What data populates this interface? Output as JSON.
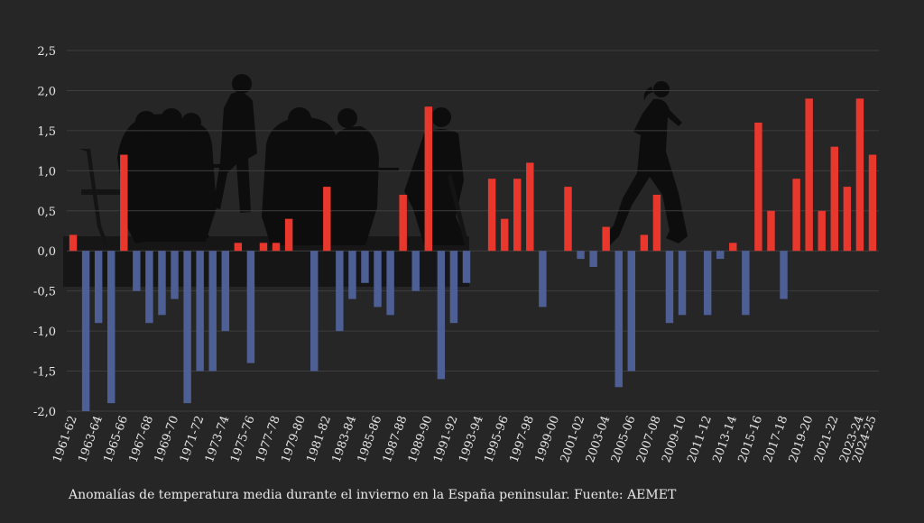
{
  "caption": "Anomalías de temperatura media durante el invierno en la España peninsular. Fuente: AEMET",
  "colors": {
    "background": "#262626",
    "positive": "#e8372c",
    "negative": "#4e5f95",
    "grid": "#3e3e3e",
    "silhouette": "#0d0d0d"
  },
  "chart_data": {
    "type": "bar",
    "title": "",
    "xlabel": "",
    "ylabel": "",
    "ylim": [
      -2.0,
      2.5
    ],
    "yticks": [
      -2.0,
      -1.5,
      -1.0,
      -0.5,
      0.0,
      0.5,
      1.0,
      1.5,
      2.0,
      2.5
    ],
    "ytick_labels": [
      "-2,0",
      "-1,5",
      "-1,0",
      "-0,5",
      "0,0",
      "0,5",
      "1,0",
      "1,5",
      "2,0",
      "2,5"
    ],
    "grid": true,
    "background_image": "silhouettes of people sitting at cafe tables and a woman jogging",
    "categories": [
      "1961-62",
      "1962-63",
      "1963-64",
      "1964-65",
      "1965-66",
      "1966-67",
      "1967-68",
      "1968-69",
      "1969-70",
      "1970-71",
      "1971-72",
      "1972-73",
      "1973-74",
      "1974-75",
      "1975-76",
      "1976-77",
      "1977-78",
      "1978-79",
      "1979-80",
      "1980-81",
      "1981-82",
      "1982-83",
      "1983-84",
      "1984-85",
      "1985-86",
      "1986-87",
      "1987-88",
      "1988-89",
      "1989-90",
      "1990-91",
      "1991-92",
      "1992-93",
      "1993-94",
      "1994-95",
      "1995-96",
      "1996-97",
      "1997-98",
      "1998-99",
      "1999-00",
      "2000-01",
      "2001-02",
      "2002-03",
      "2003-04",
      "2004-05",
      "2005-06",
      "2006-07",
      "2007-08",
      "2008-09",
      "2009-10",
      "2010-11",
      "2011-12",
      "2012-13",
      "2013-14",
      "2014-15",
      "2015-16",
      "2016-17",
      "2017-18",
      "2018-19",
      "2019-20",
      "2020-21",
      "2021-22",
      "2022-23",
      "2023-24",
      "2024-25"
    ],
    "values": [
      0.2,
      -2.0,
      -0.9,
      -1.9,
      1.2,
      -0.5,
      -0.9,
      -0.8,
      -0.6,
      -1.9,
      -1.5,
      -1.5,
      -1.0,
      0.1,
      -1.4,
      0.1,
      0.1,
      0.4,
      0.0,
      -1.5,
      0.8,
      -1.0,
      -0.6,
      -0.4,
      -0.7,
      -0.8,
      0.7,
      -0.5,
      1.8,
      -1.6,
      -0.9,
      -0.4,
      0.0,
      0.9,
      0.4,
      0.9,
      1.1,
      -0.7,
      0.0,
      0.8,
      -0.1,
      -0.2,
      0.3,
      -1.7,
      -1.5,
      0.2,
      0.7,
      -0.9,
      -0.8,
      0.0,
      -0.8,
      -0.1,
      0.1,
      -0.8,
      1.6,
      0.5,
      -0.6,
      0.9,
      1.9,
      0.5,
      1.3,
      0.8,
      1.9,
      1.2
    ],
    "visible_xtick_labels": [
      "1961-62",
      "1963-64",
      "1965-66",
      "1967-68",
      "1969-70",
      "1971-72",
      "1973-74",
      "1975-76",
      "1977-78",
      "1979-80",
      "1981-82",
      "1983-84",
      "1985-86",
      "1987-88",
      "1989-90",
      "1991-92",
      "1993-94",
      "1995-96",
      "1997-98",
      "1999-00",
      "2001-02",
      "2003-04",
      "2005-06",
      "2007-08",
      "2009-10",
      "2011-12",
      "2013-14",
      "2015-16",
      "2017-18",
      "2019-20",
      "2021-22",
      "2023-24",
      "2024-25"
    ]
  }
}
